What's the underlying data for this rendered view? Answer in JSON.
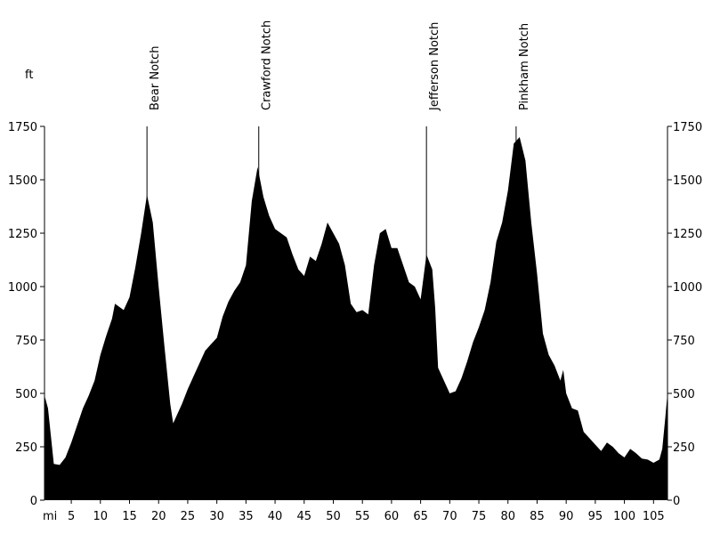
{
  "chart_data": {
    "type": "area",
    "y_label": "ft",
    "x_label": "mi",
    "xlim": [
      0.4,
      107.4
    ],
    "ylim": [
      0,
      1750
    ],
    "xticks": [
      5,
      10,
      15,
      20,
      25,
      30,
      35,
      40,
      45,
      50,
      55,
      60,
      65,
      70,
      75,
      80,
      85,
      90,
      95,
      100,
      105
    ],
    "yticks": [
      0,
      250,
      500,
      750,
      1000,
      1250,
      1500,
      1750
    ],
    "annotations": [
      {
        "label": "Bear Notch",
        "x": 18
      },
      {
        "label": "Crawford Notch",
        "x": 37.2
      },
      {
        "label": "Jefferson Notch",
        "x": 66
      },
      {
        "label": "Pinkham Notch",
        "x": 81.4
      }
    ],
    "series": [
      {
        "color": "#000000",
        "x": [
          0.4,
          1,
          1.5,
          2,
          3,
          4,
          5,
          6,
          7,
          8,
          9,
          10,
          11,
          12,
          12.5,
          13,
          14,
          15,
          16,
          17,
          18,
          19,
          20,
          21,
          22,
          22.5,
          23,
          24,
          25,
          26,
          27,
          28,
          29,
          30,
          31,
          32,
          33,
          34,
          35,
          36,
          37,
          38,
          39,
          40,
          41,
          42,
          43,
          44,
          45,
          46,
          47,
          48,
          49,
          50,
          51,
          52,
          53,
          54,
          55,
          56,
          57,
          58,
          59,
          60,
          61,
          62,
          63,
          64,
          65,
          66,
          67,
          67.5,
          68,
          69,
          70,
          71,
          72,
          73,
          74,
          75,
          76,
          77,
          78,
          79,
          80,
          81,
          82,
          83,
          84,
          85,
          86,
          87,
          88,
          89,
          89.5,
          90,
          91,
          92,
          93,
          94,
          95,
          96,
          97,
          98,
          99,
          100,
          101,
          102,
          103,
          104,
          105,
          106,
          106.5,
          107,
          107.4
        ],
        "values": [
          490,
          430,
          300,
          170,
          165,
          200,
          270,
          350,
          430,
          490,
          560,
          680,
          770,
          850,
          920,
          910,
          890,
          950,
          1090,
          1250,
          1430,
          1300,
          1000,
          720,
          450,
          360,
          390,
          450,
          520,
          580,
          640,
          700,
          730,
          760,
          860,
          930,
          980,
          1020,
          1100,
          1400,
          1560,
          1420,
          1330,
          1270,
          1250,
          1230,
          1150,
          1080,
          1050,
          1140,
          1120,
          1200,
          1300,
          1250,
          1200,
          1100,
          920,
          880,
          890,
          870,
          1100,
          1250,
          1270,
          1180,
          1180,
          1100,
          1020,
          1000,
          940,
          1150,
          1080,
          900,
          620,
          560,
          500,
          510,
          570,
          650,
          740,
          810,
          890,
          1020,
          1210,
          1300,
          1450,
          1670,
          1700,
          1590,
          1300,
          1060,
          780,
          680,
          630,
          560,
          610,
          500,
          430,
          420,
          320,
          290,
          260,
          230,
          270,
          250,
          220,
          200,
          240,
          220,
          195,
          190,
          175,
          190,
          240,
          380,
          500
        ]
      }
    ]
  }
}
